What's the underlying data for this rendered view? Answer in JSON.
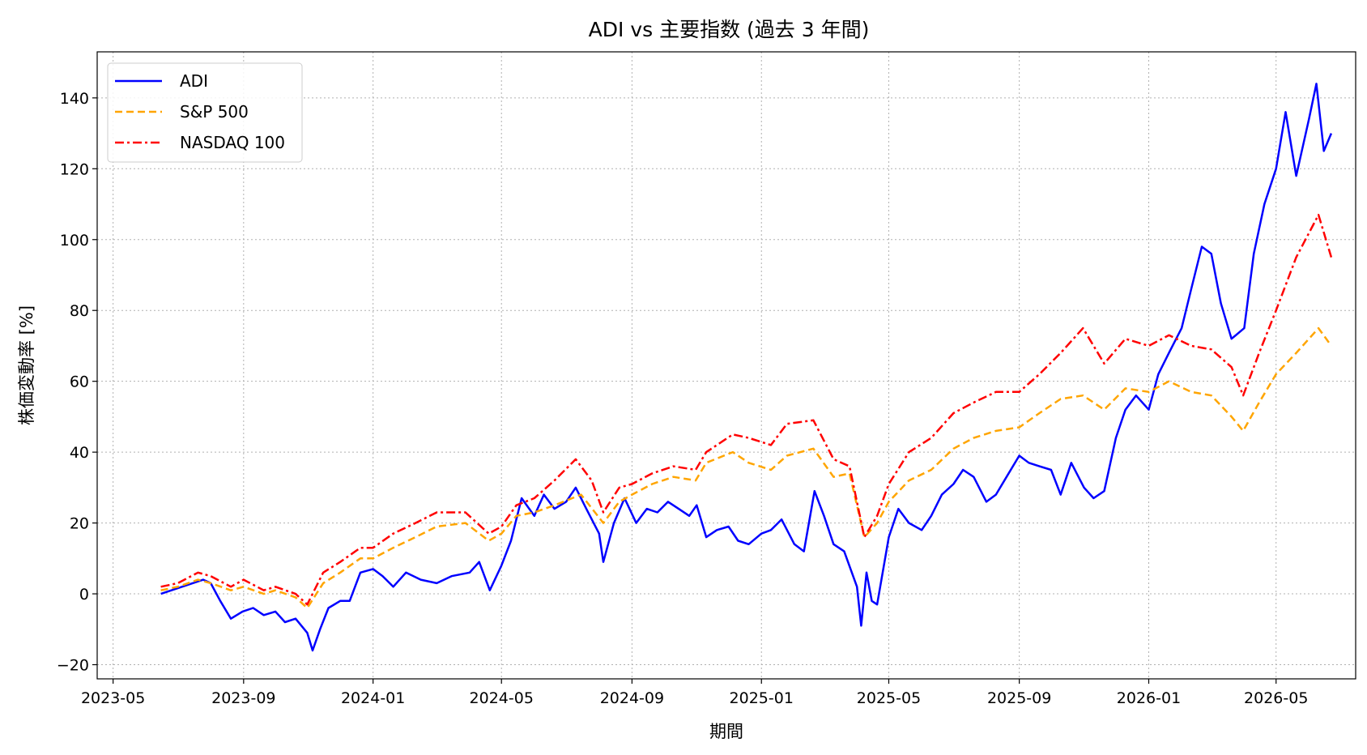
{
  "chart_data": {
    "type": "line",
    "title": "ADI vs 主要指数 (過去 3 年間)",
    "xlabel": "期間",
    "ylabel": "株価変動率 [%]",
    "x_tick_labels": [
      "2023-05",
      "2023-09",
      "2024-01",
      "2024-05",
      "2024-09",
      "2025-01",
      "2025-05",
      "2025-09",
      "2026-01",
      "2026-05"
    ],
    "y_tick_labels": [
      "−20",
      "0",
      "20",
      "40",
      "60",
      "80",
      "100",
      "120",
      "140"
    ],
    "y_ticks": [
      -20,
      0,
      20,
      40,
      60,
      80,
      100,
      120,
      140
    ],
    "ylim": [
      -24,
      153
    ],
    "xlim": [
      "2023-04-16",
      "2026-07-15"
    ],
    "grid": true,
    "legend_position": "top-left",
    "series": [
      {
        "name": "ADI",
        "color": "#0000ff",
        "style": "solid",
        "points": [
          [
            "2023-06-15",
            0
          ],
          [
            "2023-06-25",
            1
          ],
          [
            "2023-07-05",
            2
          ],
          [
            "2023-07-15",
            3
          ],
          [
            "2023-07-25",
            4
          ],
          [
            "2023-08-01",
            3
          ],
          [
            "2023-08-10",
            -2
          ],
          [
            "2023-08-20",
            -7
          ],
          [
            "2023-08-31",
            -5
          ],
          [
            "2023-09-10",
            -4
          ],
          [
            "2023-09-20",
            -6
          ],
          [
            "2023-10-01",
            -5
          ],
          [
            "2023-10-10",
            -8
          ],
          [
            "2023-10-20",
            -7
          ],
          [
            "2023-10-31",
            -11
          ],
          [
            "2023-11-05",
            -16
          ],
          [
            "2023-11-12",
            -10
          ],
          [
            "2023-11-20",
            -4
          ],
          [
            "2023-12-01",
            -2
          ],
          [
            "2023-12-10",
            -2
          ],
          [
            "2023-12-20",
            6
          ],
          [
            "2024-01-01",
            7
          ],
          [
            "2024-01-10",
            5
          ],
          [
            "2024-01-20",
            2
          ],
          [
            "2024-02-01",
            6
          ],
          [
            "2024-02-15",
            4
          ],
          [
            "2024-03-01",
            3
          ],
          [
            "2024-03-15",
            5
          ],
          [
            "2024-04-01",
            6
          ],
          [
            "2024-04-10",
            9
          ],
          [
            "2024-04-20",
            1
          ],
          [
            "2024-05-01",
            8
          ],
          [
            "2024-05-10",
            15
          ],
          [
            "2024-05-20",
            27
          ],
          [
            "2024-06-01",
            22
          ],
          [
            "2024-06-10",
            28
          ],
          [
            "2024-06-20",
            24
          ],
          [
            "2024-07-01",
            26
          ],
          [
            "2024-07-10",
            30
          ],
          [
            "2024-07-20",
            24
          ],
          [
            "2024-08-01",
            17
          ],
          [
            "2024-08-05",
            9
          ],
          [
            "2024-08-15",
            20
          ],
          [
            "2024-08-25",
            27
          ],
          [
            "2024-09-05",
            20
          ],
          [
            "2024-09-15",
            24
          ],
          [
            "2024-09-25",
            23
          ],
          [
            "2024-10-05",
            26
          ],
          [
            "2024-10-15",
            24
          ],
          [
            "2024-10-25",
            22
          ],
          [
            "2024-11-01",
            25
          ],
          [
            "2024-11-10",
            16
          ],
          [
            "2024-11-20",
            18
          ],
          [
            "2024-12-01",
            19
          ],
          [
            "2024-12-10",
            15
          ],
          [
            "2024-12-20",
            14
          ],
          [
            "2025-01-01",
            17
          ],
          [
            "2025-01-10",
            18
          ],
          [
            "2025-01-20",
            21
          ],
          [
            "2025-02-01",
            14
          ],
          [
            "2025-02-10",
            12
          ],
          [
            "2025-02-20",
            29
          ],
          [
            "2025-03-01",
            22
          ],
          [
            "2025-03-10",
            14
          ],
          [
            "2025-03-20",
            12
          ],
          [
            "2025-04-01",
            2
          ],
          [
            "2025-04-05",
            -9
          ],
          [
            "2025-04-10",
            6
          ],
          [
            "2025-04-15",
            -2
          ],
          [
            "2025-04-20",
            -3
          ],
          [
            "2025-05-01",
            16
          ],
          [
            "2025-05-10",
            24
          ],
          [
            "2025-05-20",
            20
          ],
          [
            "2025-06-01",
            18
          ],
          [
            "2025-06-10",
            22
          ],
          [
            "2025-06-20",
            28
          ],
          [
            "2025-07-01",
            31
          ],
          [
            "2025-07-10",
            35
          ],
          [
            "2025-07-20",
            33
          ],
          [
            "2025-08-01",
            26
          ],
          [
            "2025-08-10",
            28
          ],
          [
            "2025-08-20",
            33
          ],
          [
            "2025-09-01",
            39
          ],
          [
            "2025-09-10",
            37
          ],
          [
            "2025-09-20",
            36
          ],
          [
            "2025-10-01",
            35
          ],
          [
            "2025-10-10",
            28
          ],
          [
            "2025-10-20",
            37
          ],
          [
            "2025-11-01",
            30
          ],
          [
            "2025-11-10",
            27
          ],
          [
            "2025-11-20",
            29
          ],
          [
            "2025-12-01",
            44
          ],
          [
            "2025-12-10",
            52
          ],
          [
            "2025-12-20",
            56
          ],
          [
            "2026-01-01",
            52
          ],
          [
            "2026-01-10",
            62
          ],
          [
            "2026-01-20",
            68
          ],
          [
            "2026-02-01",
            75
          ],
          [
            "2026-02-10",
            86
          ],
          [
            "2026-02-20",
            98
          ],
          [
            "2026-03-01",
            96
          ],
          [
            "2026-03-10",
            82
          ],
          [
            "2026-03-20",
            72
          ],
          [
            "2026-04-01",
            75
          ],
          [
            "2026-04-10",
            96
          ],
          [
            "2026-04-20",
            110
          ],
          [
            "2026-05-01",
            120
          ],
          [
            "2026-05-10",
            136
          ],
          [
            "2026-05-20",
            118
          ],
          [
            "2026-06-01",
            134
          ],
          [
            "2026-06-08",
            144
          ],
          [
            "2026-06-15",
            125
          ],
          [
            "2026-06-22",
            130
          ]
        ]
      },
      {
        "name": "S&P 500",
        "color": "#ffa500",
        "style": "dashed",
        "points": [
          [
            "2023-06-15",
            1
          ],
          [
            "2023-07-01",
            2
          ],
          [
            "2023-07-20",
            4
          ],
          [
            "2023-08-01",
            3
          ],
          [
            "2023-08-20",
            1
          ],
          [
            "2023-09-01",
            2
          ],
          [
            "2023-09-20",
            0
          ],
          [
            "2023-10-01",
            1
          ],
          [
            "2023-10-20",
            -1
          ],
          [
            "2023-10-31",
            -4
          ],
          [
            "2023-11-15",
            3
          ],
          [
            "2023-12-01",
            6
          ],
          [
            "2023-12-20",
            10
          ],
          [
            "2024-01-01",
            10
          ],
          [
            "2024-01-20",
            13
          ],
          [
            "2024-02-10",
            16
          ],
          [
            "2024-03-01",
            19
          ],
          [
            "2024-03-28",
            20
          ],
          [
            "2024-04-19",
            15
          ],
          [
            "2024-05-01",
            17
          ],
          [
            "2024-05-15",
            22
          ],
          [
            "2024-06-01",
            23
          ],
          [
            "2024-06-20",
            25
          ],
          [
            "2024-07-15",
            28
          ],
          [
            "2024-08-05",
            20
          ],
          [
            "2024-08-20",
            26
          ],
          [
            "2024-09-01",
            28
          ],
          [
            "2024-09-20",
            31
          ],
          [
            "2024-10-10",
            33
          ],
          [
            "2024-10-31",
            32
          ],
          [
            "2024-11-10",
            37
          ],
          [
            "2024-12-05",
            40
          ],
          [
            "2024-12-20",
            37
          ],
          [
            "2025-01-10",
            35
          ],
          [
            "2025-01-25",
            39
          ],
          [
            "2025-02-19",
            41
          ],
          [
            "2025-03-10",
            33
          ],
          [
            "2025-03-25",
            34
          ],
          [
            "2025-04-08",
            16
          ],
          [
            "2025-04-20",
            20
          ],
          [
            "2025-05-01",
            26
          ],
          [
            "2025-05-20",
            32
          ],
          [
            "2025-06-10",
            35
          ],
          [
            "2025-07-01",
            41
          ],
          [
            "2025-07-20",
            44
          ],
          [
            "2025-08-10",
            46
          ],
          [
            "2025-09-01",
            47
          ],
          [
            "2025-09-20",
            51
          ],
          [
            "2025-10-10",
            55
          ],
          [
            "2025-10-31",
            56
          ],
          [
            "2025-11-20",
            52
          ],
          [
            "2025-12-10",
            58
          ],
          [
            "2026-01-01",
            57
          ],
          [
            "2026-01-20",
            60
          ],
          [
            "2026-02-10",
            57
          ],
          [
            "2026-03-01",
            56
          ],
          [
            "2026-03-20",
            50
          ],
          [
            "2026-03-31",
            46
          ],
          [
            "2026-04-15",
            54
          ],
          [
            "2026-05-01",
            62
          ],
          [
            "2026-05-20",
            68
          ],
          [
            "2026-06-10",
            75
          ],
          [
            "2026-06-22",
            70
          ]
        ]
      },
      {
        "name": "NASDAQ 100",
        "color": "#ff0000",
        "style": "dashdot",
        "points": [
          [
            "2023-06-15",
            2
          ],
          [
            "2023-07-01",
            3
          ],
          [
            "2023-07-20",
            6
          ],
          [
            "2023-08-01",
            5
          ],
          [
            "2023-08-20",
            2
          ],
          [
            "2023-09-01",
            4
          ],
          [
            "2023-09-20",
            1
          ],
          [
            "2023-10-01",
            2
          ],
          [
            "2023-10-20",
            0
          ],
          [
            "2023-10-31",
            -3
          ],
          [
            "2023-11-15",
            6
          ],
          [
            "2023-12-01",
            9
          ],
          [
            "2023-12-20",
            13
          ],
          [
            "2024-01-01",
            13
          ],
          [
            "2024-01-20",
            17
          ],
          [
            "2024-02-10",
            20
          ],
          [
            "2024-03-01",
            23
          ],
          [
            "2024-03-28",
            23
          ],
          [
            "2024-04-19",
            17
          ],
          [
            "2024-05-01",
            19
          ],
          [
            "2024-05-15",
            25
          ],
          [
            "2024-06-01",
            27
          ],
          [
            "2024-06-20",
            32
          ],
          [
            "2024-07-10",
            38
          ],
          [
            "2024-07-25",
            32
          ],
          [
            "2024-08-05",
            23
          ],
          [
            "2024-08-20",
            30
          ],
          [
            "2024-09-01",
            31
          ],
          [
            "2024-09-20",
            34
          ],
          [
            "2024-10-10",
            36
          ],
          [
            "2024-10-31",
            35
          ],
          [
            "2024-11-10",
            40
          ],
          [
            "2024-12-05",
            45
          ],
          [
            "2024-12-20",
            44
          ],
          [
            "2025-01-10",
            42
          ],
          [
            "2025-01-25",
            48
          ],
          [
            "2025-02-19",
            49
          ],
          [
            "2025-03-10",
            38
          ],
          [
            "2025-03-25",
            36
          ],
          [
            "2025-04-08",
            16
          ],
          [
            "2025-04-20",
            22
          ],
          [
            "2025-05-01",
            31
          ],
          [
            "2025-05-20",
            40
          ],
          [
            "2025-06-10",
            44
          ],
          [
            "2025-07-01",
            51
          ],
          [
            "2025-07-20",
            54
          ],
          [
            "2025-08-10",
            57
          ],
          [
            "2025-09-01",
            57
          ],
          [
            "2025-09-20",
            62
          ],
          [
            "2025-10-10",
            68
          ],
          [
            "2025-10-31",
            75
          ],
          [
            "2025-11-20",
            65
          ],
          [
            "2025-12-10",
            72
          ],
          [
            "2026-01-01",
            70
          ],
          [
            "2026-01-20",
            73
          ],
          [
            "2026-02-10",
            70
          ],
          [
            "2026-03-01",
            69
          ],
          [
            "2026-03-20",
            64
          ],
          [
            "2026-03-31",
            56
          ],
          [
            "2026-04-15",
            68
          ],
          [
            "2026-05-01",
            80
          ],
          [
            "2026-05-20",
            95
          ],
          [
            "2026-06-10",
            107
          ],
          [
            "2026-06-22",
            95
          ]
        ]
      }
    ]
  }
}
